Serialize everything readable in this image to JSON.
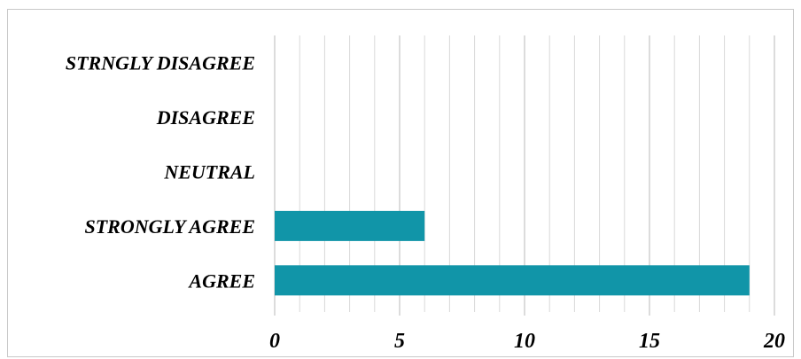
{
  "chart_data": {
    "type": "bar",
    "orientation": "horizontal",
    "categories": [
      "AGREE",
      "STRONGLY AGREE",
      "NEUTRAL",
      "DISAGREE",
      "STRNGLY DISAGREE"
    ],
    "values": [
      19,
      6,
      0,
      0,
      0
    ],
    "xlim": [
      0,
      20
    ],
    "major_ticks": [
      0,
      5,
      10,
      15,
      20
    ],
    "minor_tick_step": 1,
    "grid": true,
    "legend": "none",
    "bar_color": "#1195A8",
    "gridline_color": "#d9d9d9",
    "title": "",
    "xlabel": "",
    "ylabel": ""
  }
}
